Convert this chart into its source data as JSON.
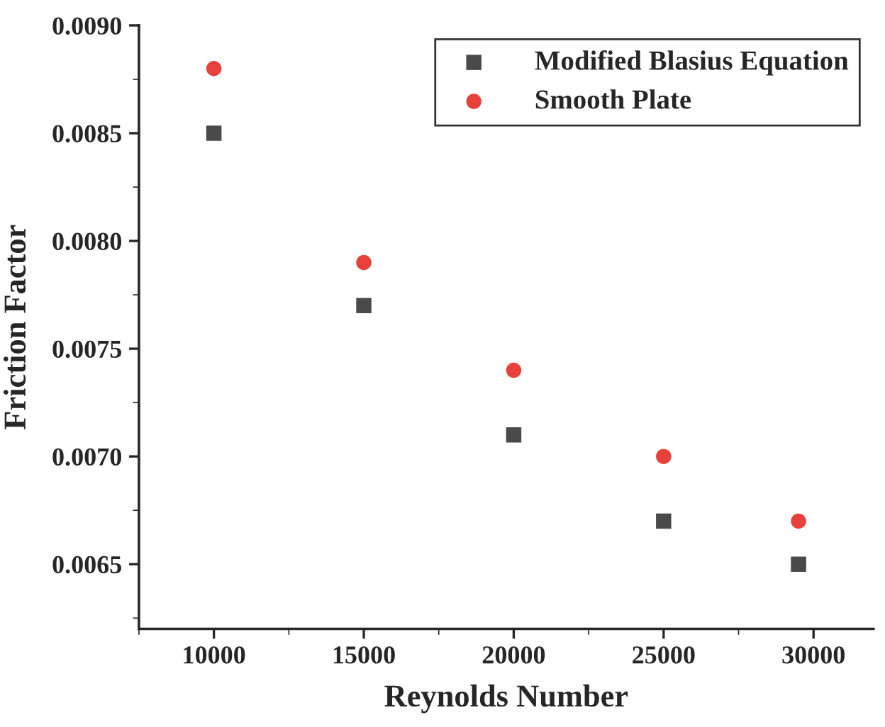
{
  "chart_data": {
    "type": "scatter",
    "xlabel": "Reynolds Number",
    "ylabel": "Friction Factor",
    "x": [
      10000,
      15000,
      20000,
      25000,
      29500
    ],
    "series": [
      {
        "name": "Modified Blasius Equation",
        "color": "#4a4a4a",
        "marker": "square",
        "values": [
          0.0085,
          0.0077,
          0.0071,
          0.0067,
          0.0065
        ]
      },
      {
        "name": "Smooth Plate",
        "color": "#e8413c",
        "marker": "circle",
        "values": [
          0.0088,
          0.0079,
          0.0074,
          0.007,
          0.0067
        ]
      }
    ],
    "xlim": [
      7500,
      32000
    ],
    "xticks": [
      10000,
      15000,
      20000,
      25000,
      30000
    ],
    "ylim": [
      0.0062,
      0.009
    ],
    "yticks": [
      {
        "value": 0.0065,
        "label": "0.0065"
      },
      {
        "value": 0.007,
        "label": "0.0070"
      },
      {
        "value": 0.0075,
        "label": "0.0075"
      },
      {
        "value": 0.008,
        "label": "0.0080"
      },
      {
        "value": 0.0085,
        "label": "0.0085"
      },
      {
        "value": 0.009,
        "label": "0.0090"
      }
    ],
    "legend": "top right",
    "grid": false
  }
}
